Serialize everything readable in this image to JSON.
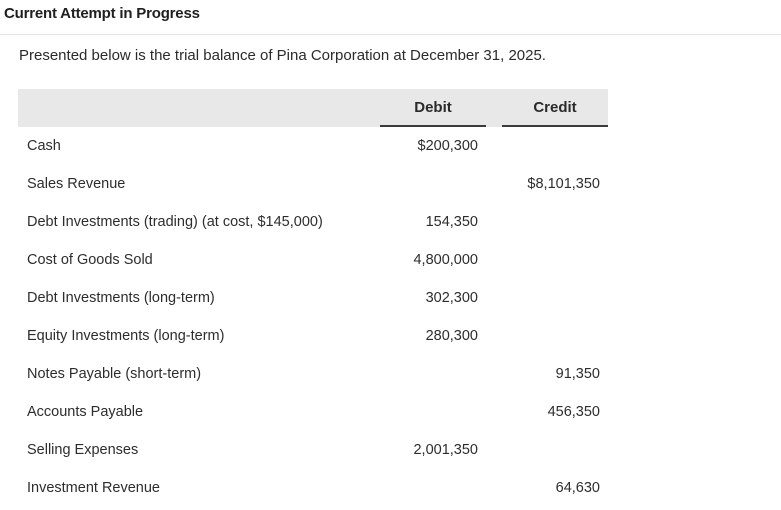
{
  "header": {
    "title": "Current Attempt in Progress"
  },
  "intro": "Presented below is the trial balance of Pina Corporation at December 31, 2025.",
  "table": {
    "columns": {
      "debit": "Debit",
      "credit": "Credit"
    },
    "rows": [
      {
        "label": "Cash",
        "debit": "$200,300",
        "credit": ""
      },
      {
        "label": "Sales Revenue",
        "debit": "",
        "credit": "$8,101,350"
      },
      {
        "label": "Debt Investments (trading) (at cost, $145,000)",
        "debit": "154,350",
        "credit": ""
      },
      {
        "label": "Cost of Goods Sold",
        "debit": "4,800,000",
        "credit": ""
      },
      {
        "label": "Debt Investments (long-term)",
        "debit": "302,300",
        "credit": ""
      },
      {
        "label": "Equity Investments (long-term)",
        "debit": "280,300",
        "credit": ""
      },
      {
        "label": "Notes Payable (short-term)",
        "debit": "",
        "credit": "91,350"
      },
      {
        "label": "Accounts Payable",
        "debit": "",
        "credit": "456,350"
      },
      {
        "label": "Selling Expenses",
        "debit": "2,001,350",
        "credit": ""
      },
      {
        "label": "Investment Revenue",
        "debit": "",
        "credit": "64,630"
      }
    ]
  }
}
